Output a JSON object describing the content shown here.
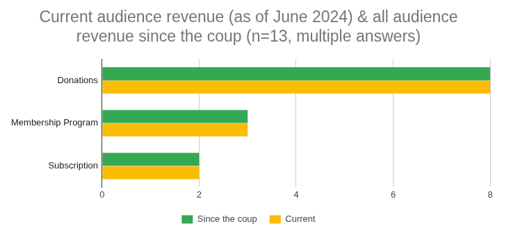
{
  "chart_data": {
    "type": "bar",
    "orientation": "horizontal",
    "title": [
      "Current audience revenue (as of June 2024) & all audience",
      "revenue since the coup (n=13, multiple answers)"
    ],
    "categories": [
      "Donations",
      "Membership Program",
      "Subscription"
    ],
    "series": [
      {
        "name": "Since the coup",
        "color": "#34a853",
        "values": [
          8,
          3,
          2
        ]
      },
      {
        "name": "Current",
        "color": "#fbbc04",
        "values": [
          8,
          3,
          2
        ]
      }
    ],
    "xlim": [
      0,
      8
    ],
    "xticks": [
      0,
      2,
      4,
      6,
      8
    ],
    "grid": true,
    "legend": "bottom"
  }
}
